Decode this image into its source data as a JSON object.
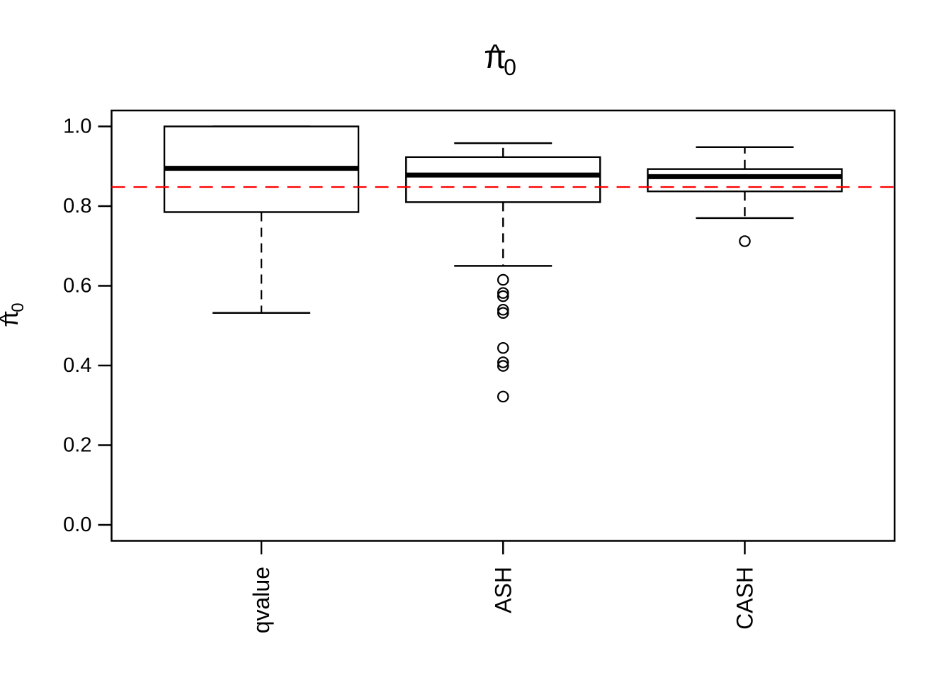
{
  "figure": {
    "background": "#FFFFFF"
  },
  "chart_data": {
    "type": "boxplot",
    "title_unicode": "π̂0",
    "title_parts": {
      "base": "π",
      "hat": "^",
      "sub": "0"
    },
    "ylabel_unicode": "π̂0",
    "ylabel_parts": {
      "base": "π",
      "hat": "^",
      "sub": "0"
    },
    "categories": [
      "qvalue",
      "ASH",
      "CASH"
    ],
    "ytick_values": [
      0.0,
      0.2,
      0.4,
      0.6,
      0.8,
      1.0
    ],
    "ytick_labels": [
      "0.0",
      "0.2",
      "0.4",
      "0.6",
      "0.8",
      "1.0"
    ],
    "ylim": [
      -0.04,
      1.04
    ],
    "xlim": [
      0.38,
      3.62
    ],
    "grid": false,
    "legend": null,
    "boxes": [
      {
        "label": "qvalue",
        "whisker_low": 0.532,
        "q1": 0.785,
        "median": 0.895,
        "q3": 1.0,
        "whisker_high": 1.0,
        "outliers": []
      },
      {
        "label": "ASH",
        "whisker_low": 0.65,
        "q1": 0.81,
        "median": 0.878,
        "q3": 0.923,
        "whisker_high": 0.958,
        "outliers": [
          0.615,
          0.582,
          0.574,
          0.54,
          0.532,
          0.444,
          0.408,
          0.399,
          0.322
        ]
      },
      {
        "label": "CASH",
        "whisker_low": 0.77,
        "q1": 0.837,
        "median": 0.874,
        "q3": 0.893,
        "whisker_high": 0.948,
        "outliers": [
          0.712
        ]
      }
    ],
    "reference_line": {
      "value": 0.848,
      "color": "#FF0000",
      "style": "dashed"
    },
    "colors": {
      "axis": "#000000",
      "box_stroke": "#000000",
      "box_fill": "#FFFFFF",
      "text": "#000000"
    }
  }
}
